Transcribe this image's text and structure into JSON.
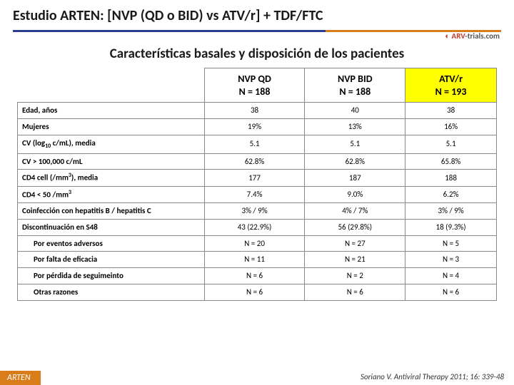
{
  "title": "Estudio ARTEN: [NVP (QD o BID) vs ATV/r] + TDF/FTC",
  "logo_arv": "ARV",
  "logo_trials": "-trials.com",
  "subtitle": "Características basales y disposición de los pacientes",
  "columns": [
    {
      "line1": "NVP QD",
      "line2": "N = 188",
      "bg": "white"
    },
    {
      "line1": "NVP BID",
      "line2": "N = 188",
      "bg": "white"
    },
    {
      "line1": "ATV/r",
      "line2": "N = 193",
      "bg": "yellow"
    }
  ],
  "rows": [
    {
      "label": "Edad, años",
      "v": [
        "38",
        "40",
        "38"
      ]
    },
    {
      "label": "Mujeres",
      "v": [
        "19%",
        "13%",
        "16%"
      ]
    },
    {
      "label": "CV (log<sub>10</sub> c/mL), media",
      "v": [
        "5.1",
        "5.1",
        "5.1"
      ]
    },
    {
      "label": "CV > 100,000 c/mL",
      "v": [
        "62.8%",
        "62.8%",
        "65.8%"
      ]
    },
    {
      "label": "CD4 cell (/mm<sup>3</sup>), media",
      "v": [
        "177",
        "187",
        "188"
      ]
    },
    {
      "label": "CD4 < 50 /mm<sup>3</sup>",
      "v": [
        "7.4%",
        "9.0%",
        "6.2%"
      ]
    },
    {
      "label": "Coinfección con hepatitis B / hepatitis C",
      "v": [
        "3% / 9%",
        "4% / 7%",
        "3% / 9%"
      ]
    },
    {
      "label": "Discontinuación en S48",
      "v": [
        "43 (22.9%)",
        "56 (29.8%)",
        "18 (9.3%)"
      ]
    },
    {
      "label": "Por eventos adversos",
      "indent": true,
      "v": [
        "N = 20",
        "N = 27",
        "N = 5"
      ]
    },
    {
      "label": "Por falta de eficacia",
      "indent": true,
      "v": [
        "N = 11",
        "N = 21",
        "N = 3"
      ]
    },
    {
      "label": "Por pérdida de seguimeinto",
      "indent": true,
      "v": [
        "N = 6",
        "N = 2",
        "N = 4"
      ]
    },
    {
      "label": "Otras razones",
      "indent": true,
      "v": [
        "N = 6",
        "N = 6",
        "N = 6"
      ]
    }
  ],
  "footer_left": "ARTEN",
  "footer_right": "Soriano V. Antiviral Therapy 2011; 16: 339-48",
  "colors": {
    "orange": "#d97c1a",
    "blue": "#2a3f8f",
    "yellow": "#ffff00",
    "border": "#888888",
    "text": "#1a1a1a"
  }
}
